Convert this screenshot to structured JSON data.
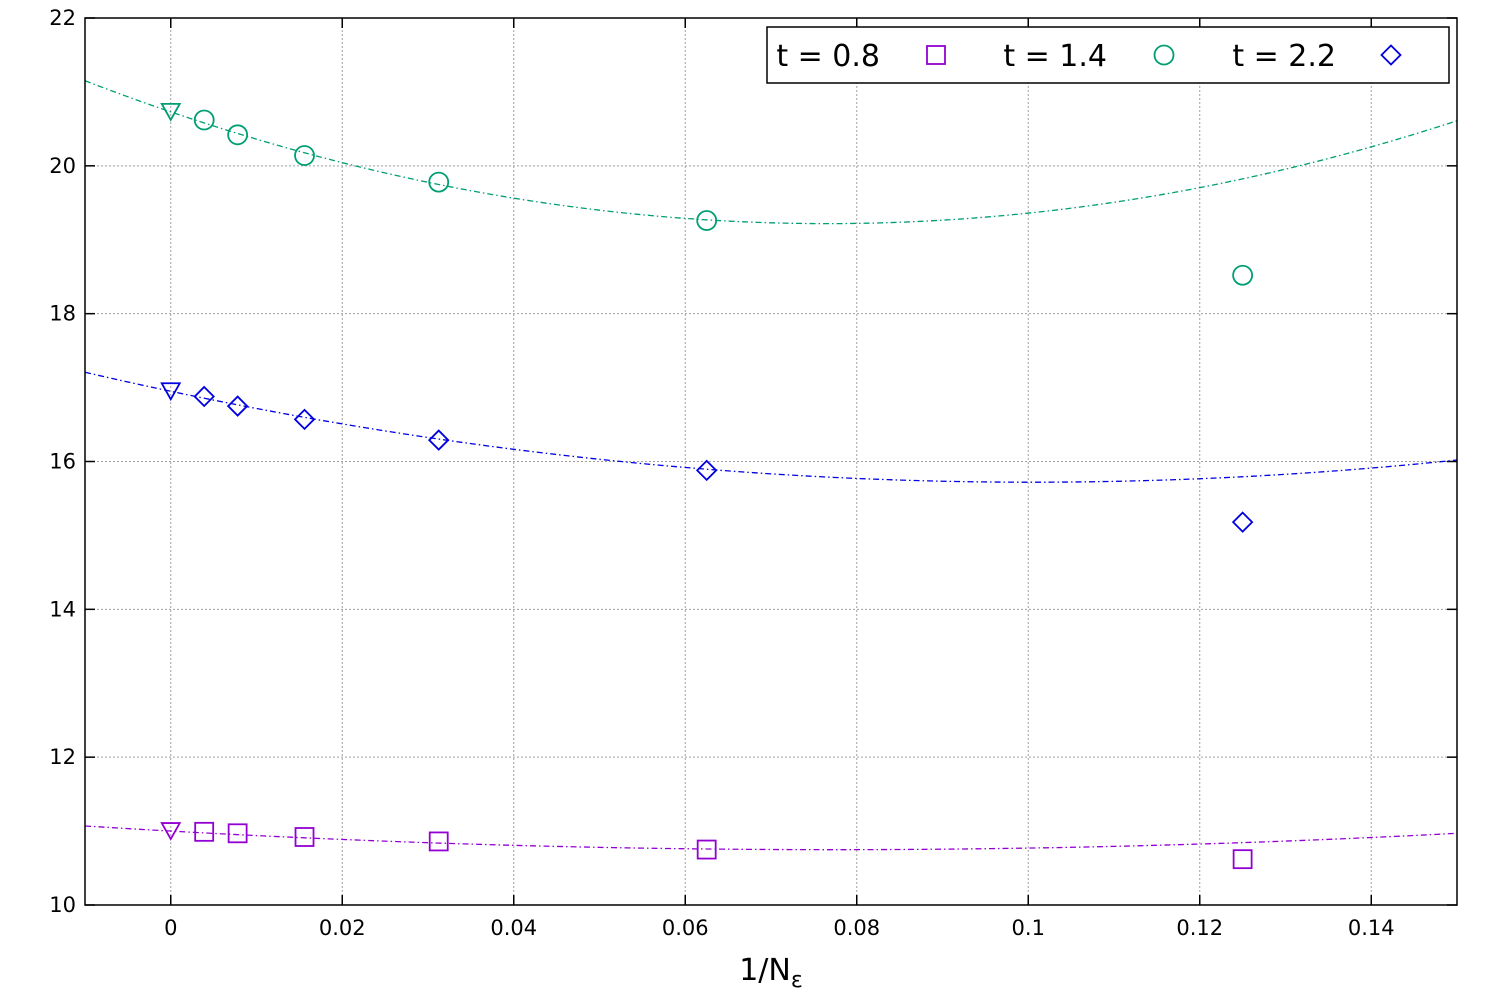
{
  "chart_data": {
    "type": "scatter",
    "title": "",
    "xlabel": "1/N",
    "xlabel_subscript": "ε",
    "ylabel": "",
    "xlim": [
      -0.01,
      0.15
    ],
    "ylim": [
      10,
      22
    ],
    "xticks": [
      0,
      0.02,
      0.04,
      0.06,
      0.08,
      0.1,
      0.12,
      0.14
    ],
    "xtick_labels": [
      "0",
      "0.02",
      "0.04",
      "0.06",
      "0.08",
      "0.1",
      "0.12",
      "0.14"
    ],
    "yticks": [
      10,
      12,
      14,
      16,
      18,
      20,
      22
    ],
    "ytick_labels": [
      "10",
      "12",
      "14",
      "16",
      "18",
      "20",
      "22"
    ],
    "grid": true,
    "legend_position": "top-right",
    "series": [
      {
        "name": "t = 0.8",
        "color": "#9400d3",
        "marker": "square",
        "x": [
          0.0039,
          0.0078,
          0.0156,
          0.03125,
          0.0625,
          0.125
        ],
        "y": [
          10.99,
          10.97,
          10.92,
          10.86,
          10.75,
          10.62
        ],
        "extrapolated": {
          "x": 0,
          "y": 11.0,
          "marker": "triangle-down"
        },
        "fit": {
          "a": 11.0,
          "b": -6.5,
          "c": 42.0
        }
      },
      {
        "name": "t = 1.4",
        "color": "#009e73",
        "marker": "circle",
        "x": [
          0.0039,
          0.0078,
          0.0156,
          0.03125,
          0.0625,
          0.125
        ],
        "y": [
          20.62,
          20.42,
          20.14,
          19.78,
          19.26,
          18.52
        ],
        "extrapolated": {
          "x": 0,
          "y": 20.73,
          "marker": "triangle-down"
        },
        "fit": {
          "a": 20.73,
          "b": -39.5,
          "c": 258.0
        }
      },
      {
        "name": "t = 2.2",
        "color": "#0000e0",
        "marker": "diamond",
        "x": [
          0.0039,
          0.0078,
          0.0156,
          0.03125,
          0.0625,
          0.125
        ],
        "y": [
          16.88,
          16.75,
          16.57,
          16.29,
          15.88,
          15.18
        ],
        "extrapolated": {
          "x": 0,
          "y": 16.95,
          "marker": "triangle-down"
        },
        "fit": {
          "a": 16.95,
          "b": -24.5,
          "c": 122.0
        }
      }
    ]
  }
}
